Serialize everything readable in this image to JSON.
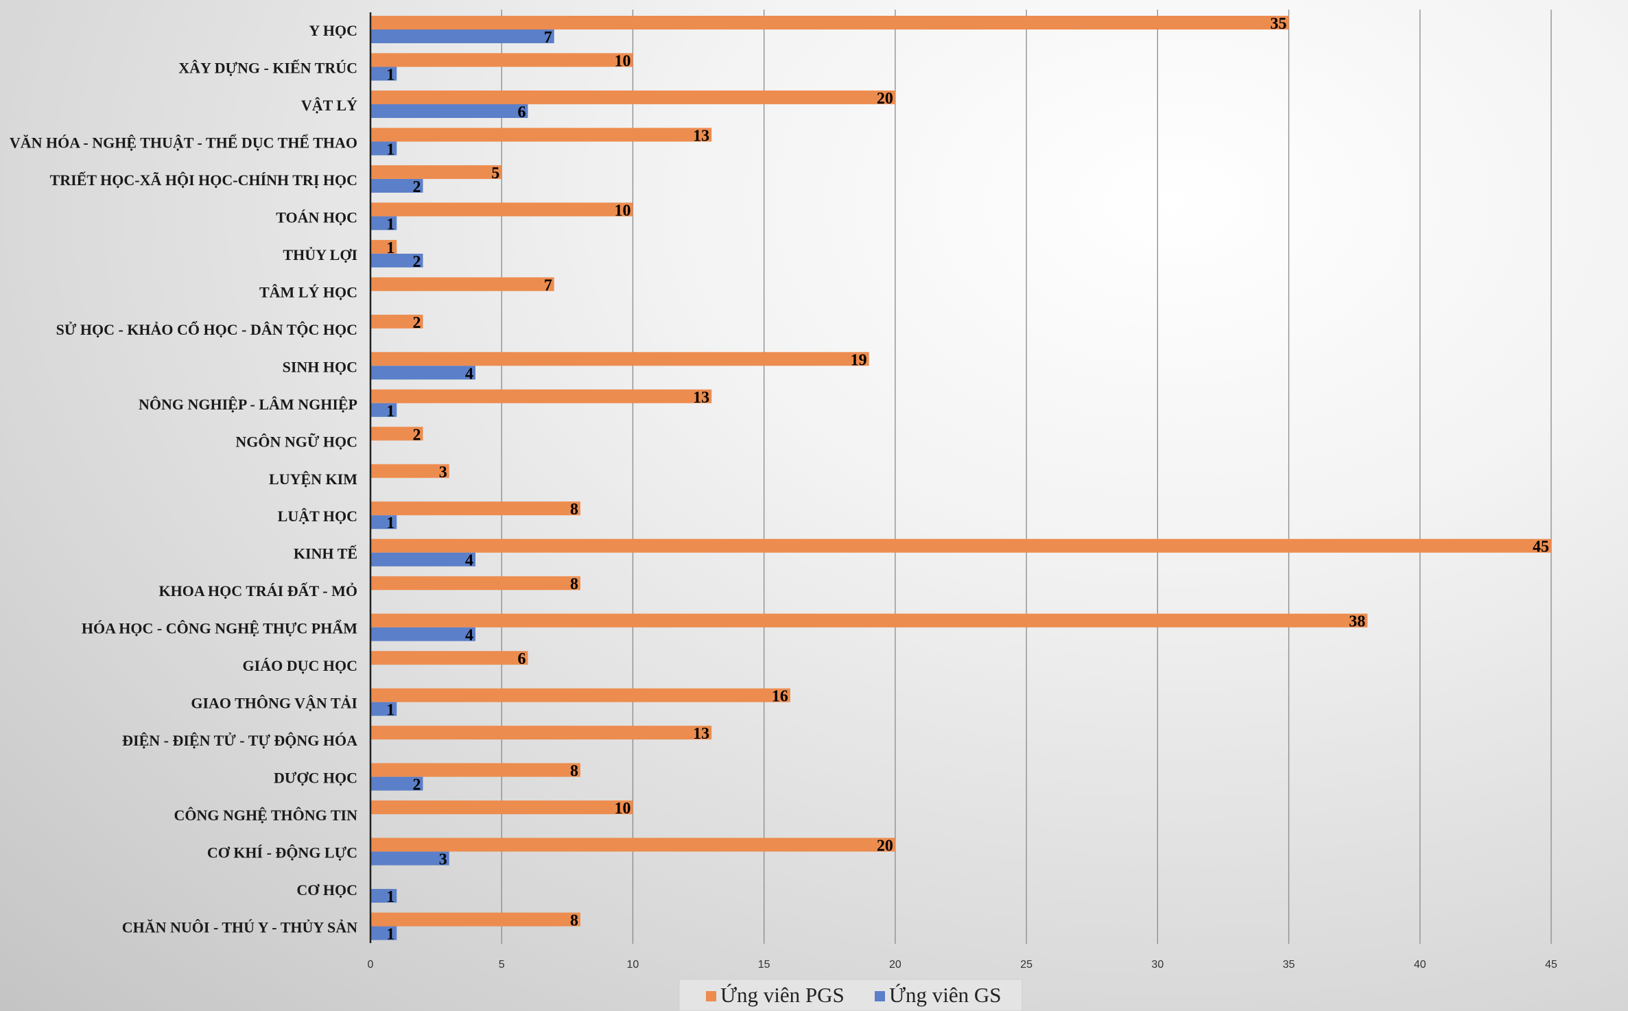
{
  "chart_data": {
    "type": "bar",
    "orientation": "horizontal",
    "title": "",
    "xlabel": "",
    "ylabel": "",
    "xlim": [
      0,
      45
    ],
    "xticks": [
      0,
      5,
      10,
      15,
      20,
      25,
      30,
      35,
      40,
      45
    ],
    "grid": true,
    "legend_position": "bottom",
    "categories": [
      "Y HỌC",
      "XÂY DỰNG - KIẾN TRÚC",
      "VẬT LÝ",
      "VĂN HÓA - NGHỆ THUẬT - THỂ DỤC THỂ THAO",
      "TRIẾT HỌC-XÃ HỘI HỌC-CHÍNH TRỊ HỌC",
      "TOÁN HỌC",
      "THỦY LỢI",
      "TÂM LÝ HỌC",
      "SỬ HỌC - KHẢO CỔ HỌC - DÂN TỘC HỌC",
      "SINH HỌC",
      "NÔNG NGHIỆP - LÂM NGHIỆP",
      "NGÔN NGỮ HỌC",
      "LUYỆN KIM",
      "LUẬT HỌC",
      "KINH TẾ",
      "KHOA HỌC TRÁI ĐẤT - MỎ",
      "HÓA HỌC - CÔNG NGHỆ THỰC PHẨM",
      "GIÁO DỤC HỌC",
      "GIAO THÔNG VẬN TẢI",
      "ĐIỆN - ĐIỆN TỬ - TỰ ĐỘNG HÓA",
      "DƯỢC HỌC",
      "CÔNG NGHỆ THÔNG TIN",
      "CƠ KHÍ - ĐỘNG LỰC",
      "CƠ HỌC",
      "CHĂN NUÔI - THÚ Y - THỦY SẢN"
    ],
    "series": [
      {
        "name": "Ứng viên PGS",
        "color": "#ED8C4F",
        "values": [
          35,
          10,
          20,
          13,
          5,
          10,
          1,
          7,
          2,
          19,
          13,
          2,
          3,
          8,
          45,
          8,
          38,
          6,
          16,
          13,
          8,
          10,
          20,
          null,
          8
        ]
      },
      {
        "name": "Ứng viên GS",
        "color": "#5B7FC8",
        "values": [
          7,
          1,
          6,
          1,
          2,
          1,
          2,
          null,
          null,
          4,
          1,
          null,
          null,
          1,
          4,
          null,
          4,
          null,
          1,
          null,
          2,
          null,
          3,
          1,
          1
        ]
      }
    ]
  }
}
